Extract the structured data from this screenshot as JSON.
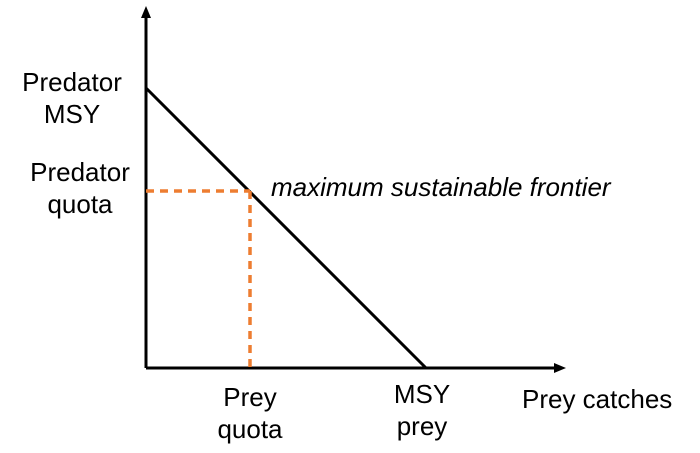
{
  "labels": {
    "predator_msy": [
      "Predator",
      "MSY"
    ],
    "predator_quota": [
      "Predator",
      "quota"
    ],
    "frontier": "maximum sustainable frontier",
    "prey_quota": [
      "Prey",
      "quota"
    ],
    "msy_prey": [
      "MSY",
      "prey"
    ],
    "x_axis": "Prey catches"
  },
  "colors": {
    "axis": "#000000",
    "frontier_line": "#000000",
    "quota_dashes": "#ED7D31"
  }
}
